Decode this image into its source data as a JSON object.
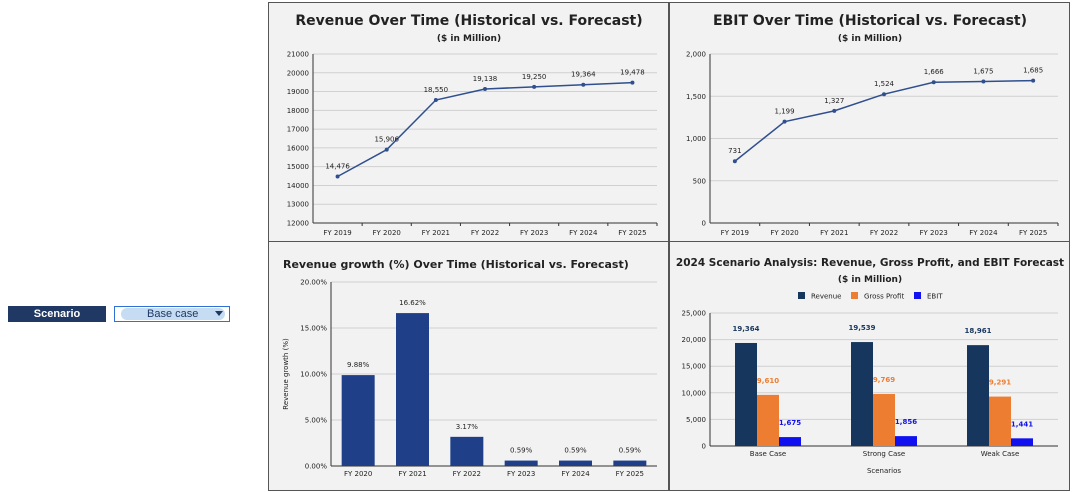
{
  "scenario": {
    "label": "Scenario",
    "selected": "Base case"
  },
  "chart_data": [
    {
      "type": "line",
      "title": "Revenue Over Time (Historical vs. Forecast)",
      "subtitle": "($ in Million)",
      "x": [
        "FY 2019",
        "FY 2020",
        "FY 2021",
        "FY 2022",
        "FY 2023",
        "FY 2024",
        "FY 2025"
      ],
      "values": [
        14476,
        15906,
        18550,
        19138,
        19250,
        19364,
        19478
      ],
      "labels": [
        "14,476",
        "15,906",
        "18,550",
        "19,138",
        "19,250",
        "19,364",
        "19,478"
      ],
      "ylim": [
        12000,
        21000
      ],
      "yticks": [
        12000,
        13000,
        14000,
        15000,
        16000,
        17000,
        18000,
        19000,
        20000,
        21000
      ],
      "ytick_labels": [
        "12000",
        "13000",
        "14000",
        "15000",
        "16000",
        "17000",
        "18000",
        "19000",
        "20000",
        "21000"
      ],
      "color": "#2f4f8f",
      "grid": true
    },
    {
      "type": "line",
      "title": "EBIT Over Time (Historical vs. Forecast)",
      "subtitle": "($ in Million)",
      "x": [
        "FY 2019",
        "FY 2020",
        "FY 2021",
        "FY 2022",
        "FY 2023",
        "FY 2024",
        "FY 2025"
      ],
      "values": [
        731,
        1199,
        1327,
        1524,
        1666,
        1675,
        1685
      ],
      "labels": [
        "731",
        "1,199",
        "1,327",
        "1,524",
        "1,666",
        "1,675",
        "1,685"
      ],
      "ylim": [
        0,
        2000
      ],
      "yticks": [
        0,
        500,
        1000,
        1500,
        2000
      ],
      "ytick_labels": [
        "0",
        "500",
        "1,000",
        "1,500",
        "2,000"
      ],
      "color": "#2f4f8f",
      "grid": true
    },
    {
      "type": "bar",
      "title": "Revenue growth (%) Over Time (Historical vs. Forecast)",
      "ylabel": "Revenue growth (%)",
      "categories": [
        "FY 2020",
        "FY 2021",
        "FY 2022",
        "FY 2023",
        "FY 2024",
        "FY 2025"
      ],
      "values": [
        9.88,
        16.62,
        3.17,
        0.59,
        0.59,
        0.59
      ],
      "labels": [
        "9.88%",
        "16.62%",
        "3.17%",
        "0.59%",
        "0.59%",
        "0.59%"
      ],
      "ylim": [
        0,
        20
      ],
      "yticks": [
        0,
        5,
        10,
        15,
        20
      ],
      "ytick_labels": [
        "0.00%",
        "5.00%",
        "10.00%",
        "15.00%",
        "20.00%"
      ],
      "color": "#1f4088",
      "grid": true
    },
    {
      "type": "bar",
      "title": "2024 Scenario Analysis: Revenue, Gross Profit, and EBIT Forecast",
      "subtitle": "($ in Million)",
      "xlabel": "Scenarios",
      "categories": [
        "Base Case",
        "Strong Case",
        "Weak Case"
      ],
      "series": [
        {
          "name": "Revenue",
          "values": [
            19364,
            19539,
            18961
          ],
          "labels": [
            "19,364",
            "19,539",
            "18,961"
          ],
          "color": "#17365d"
        },
        {
          "name": "Gross Profit",
          "values": [
            9610,
            9769,
            9291
          ],
          "labels": [
            "9,610",
            "9,769",
            "9,291"
          ],
          "color": "#ed7d31"
        },
        {
          "name": "EBIT",
          "values": [
            1675,
            1856,
            1441
          ],
          "labels": [
            "1,675",
            "1,856",
            "1,441"
          ],
          "color": "#1010f0"
        }
      ],
      "ylim": [
        0,
        25000
      ],
      "yticks": [
        0,
        5000,
        10000,
        15000,
        20000,
        25000
      ],
      "ytick_labels": [
        "0",
        "5,000",
        "10,000",
        "15,000",
        "20,000",
        "25,000"
      ],
      "legend": "top",
      "grid": true
    }
  ]
}
